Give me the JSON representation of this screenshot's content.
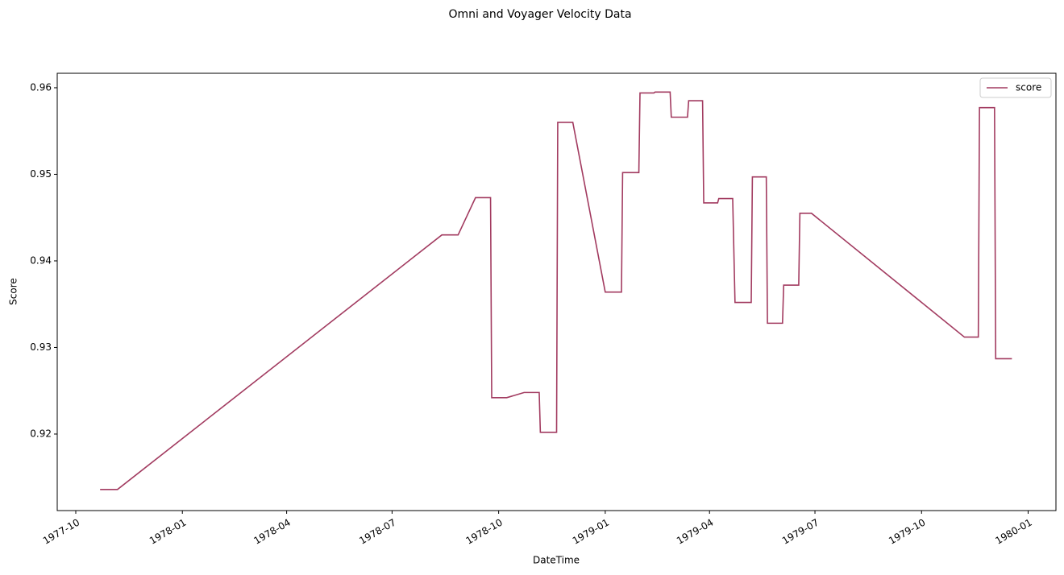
{
  "chart_data": {
    "type": "line",
    "title": "Omni and Voyager Velocity Data",
    "x_label": "DateTime",
    "y_label": "Score",
    "x": [
      "1977-10-22",
      "1977-11-06",
      "1978-08-13",
      "1978-08-27",
      "1978-09-11",
      "1978-09-24",
      "1978-09-25",
      "1978-10-08",
      "1978-10-23",
      "1978-11-05",
      "1978-11-06",
      "1978-11-20",
      "1978-11-21",
      "1978-12-04",
      "1979-01-01",
      "1979-01-15",
      "1979-01-16",
      "1979-01-30",
      "1979-01-31",
      "1979-02-12",
      "1979-02-13",
      "1979-02-26",
      "1979-02-27",
      "1979-03-13",
      "1979-03-14",
      "1979-03-26",
      "1979-03-27",
      "1979-04-08",
      "1979-04-09",
      "1979-04-21",
      "1979-04-23",
      "1979-05-07",
      "1979-05-08",
      "1979-05-20",
      "1979-05-21",
      "1979-06-03",
      "1979-06-04",
      "1979-06-17",
      "1979-06-18",
      "1979-06-28",
      "1979-11-07",
      "1979-11-19",
      "1979-11-20",
      "1979-12-03",
      "1979-12-04",
      "1979-12-18"
    ],
    "series": [
      {
        "name": "score",
        "color": "#a23b60",
        "values": [
          0.9136,
          0.9136,
          0.943,
          0.943,
          0.9473,
          0.9473,
          0.9242,
          0.9242,
          0.9248,
          0.9248,
          0.9202,
          0.9202,
          0.956,
          0.956,
          0.9364,
          0.9364,
          0.9502,
          0.9502,
          0.9594,
          0.9594,
          0.9595,
          0.9595,
          0.9566,
          0.9566,
          0.9585,
          0.9585,
          0.9467,
          0.9467,
          0.9472,
          0.9472,
          0.9352,
          0.9352,
          0.9497,
          0.9497,
          0.9328,
          0.9328,
          0.9372,
          0.9372,
          0.9455,
          0.9455,
          0.9312,
          0.9312,
          0.9577,
          0.9577,
          0.9287,
          0.9287
        ]
      }
    ],
    "xlim": [
      "1977-09-15",
      "1980-01-25"
    ],
    "xticks": [
      "1977-10",
      "1978-01",
      "1978-04",
      "1978-07",
      "1978-10",
      "1979-01",
      "1979-04",
      "1979-07",
      "1979-10",
      "1980-01"
    ],
    "ylim": [
      0.91116,
      0.96167
    ],
    "yticks": [
      0.92,
      0.93,
      0.94,
      0.95,
      0.96
    ],
    "grid": false,
    "legend": "upper right"
  }
}
